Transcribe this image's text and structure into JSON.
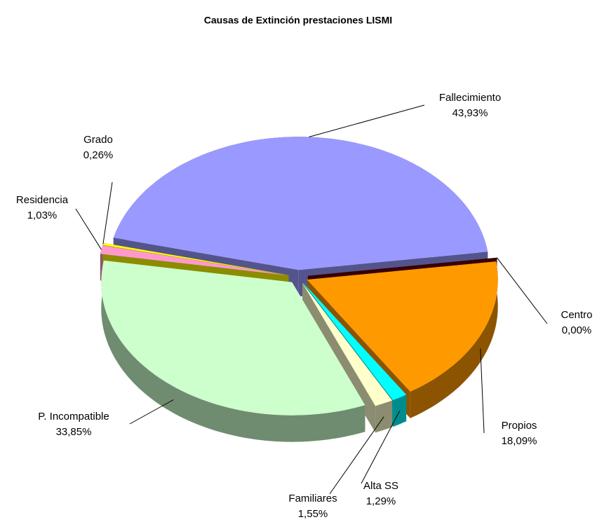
{
  "chart_data": {
    "type": "pie",
    "title": "Causas de Extinción prestaciones LISMI",
    "categories": [
      "Fallecimiento",
      "Centro",
      "Propios",
      "Alta SS",
      "Familiares",
      "P. Incompatible",
      "Residencia",
      "Grado"
    ],
    "values": [
      43.93,
      0.0,
      18.09,
      1.29,
      1.55,
      33.85,
      1.03,
      0.26
    ],
    "value_labels": [
      "43,93%",
      "0,00%",
      "18,09%",
      "1,29%",
      "1,55%",
      "33,85%",
      "1,03%",
      "0,26%"
    ],
    "colors": [
      "#9999ff",
      "#660000",
      "#ff9900",
      "#00ffff",
      "#ffffcc",
      "#ccffcc",
      "#ff99cc",
      "#ffff00"
    ]
  }
}
